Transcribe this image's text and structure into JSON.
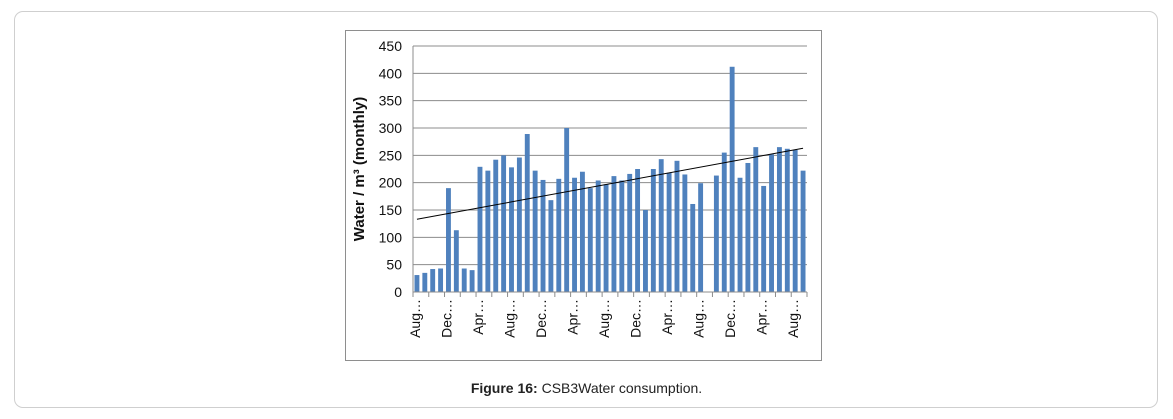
{
  "caption": {
    "label": "Figure 16:",
    "text": "CSB3Water consumption."
  },
  "chart_data": {
    "type": "bar",
    "title": "",
    "xlabel": "",
    "ylabel": "Water / m³ (monthly)",
    "ylim": [
      0,
      450
    ],
    "yticks": [
      0,
      50,
      100,
      150,
      200,
      250,
      300,
      350,
      400,
      450
    ],
    "grid": true,
    "legend": "none",
    "bar_color": "#4f81bd",
    "trendline": {
      "type": "linear",
      "start": 133,
      "end": 263,
      "color": "#000000"
    },
    "x_tick_labels": [
      "Aug…",
      "Dec…",
      "Apr…",
      "Aug…",
      "Dec…",
      "Apr…",
      "Aug…",
      "Dec…",
      "Apr…",
      "Aug…",
      "Dec…",
      "Apr…",
      "Aug…"
    ],
    "values": [
      31,
      35,
      42,
      43,
      190,
      113,
      43,
      40,
      229,
      222,
      242,
      250,
      228,
      246,
      289,
      222,
      205,
      168,
      207,
      300,
      209,
      220,
      190,
      204,
      197,
      212,
      204,
      216,
      225,
      150,
      225,
      243,
      218,
      240,
      215,
      161,
      199,
      0,
      213,
      255,
      412,
      209,
      236,
      265,
      194,
      252,
      265,
      262,
      260,
      222
    ]
  }
}
